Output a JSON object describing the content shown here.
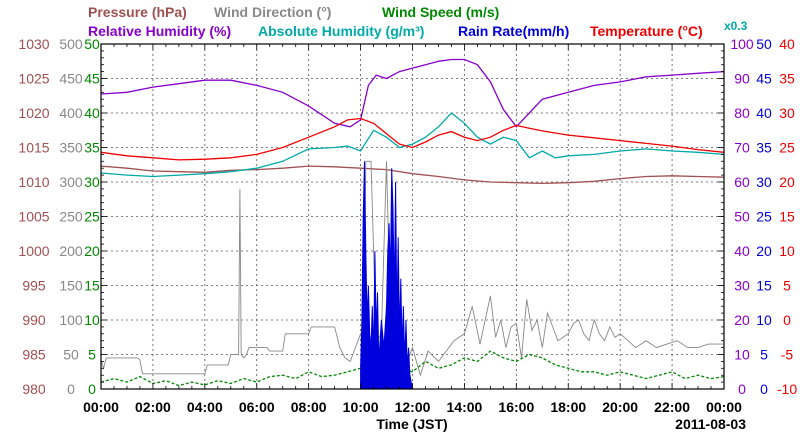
{
  "chart_data": {
    "type": "line",
    "date": "2011-08-03",
    "xlabel": "Time (JST)",
    "x_ticks": [
      "00:00",
      "02:00",
      "04:00",
      "06:00",
      "08:00",
      "10:00",
      "12:00",
      "14:00",
      "16:00",
      "18:00",
      "20:00",
      "22:00",
      "00:00"
    ],
    "x_range_hours": [
      0,
      24
    ],
    "grid": true,
    "colors": {
      "pressure": "#a05050",
      "wind_direction": "#888888",
      "wind_speed": "#008800",
      "relative_humidity": "#8800cc",
      "absolute_humidity": "#00aaaa",
      "rain_rate": "#0000dd",
      "temperature": "#ee0000"
    },
    "legend": {
      "row1": [
        {
          "key": "pressure",
          "label": "Pressure (hPa)"
        },
        {
          "key": "wind_direction",
          "label": "Wind Direction (°)"
        },
        {
          "key": "wind_speed",
          "label": "Wind Speed (m/s)"
        }
      ],
      "row2": [
        {
          "key": "relative_humidity",
          "label": "Relative Humidity (%)"
        },
        {
          "key": "absolute_humidity",
          "label": "Absolute Humidity (g/m³)"
        },
        {
          "key": "rain_rate",
          "label": "Rain Rate(mm/h)"
        },
        {
          "key": "temperature",
          "label": "Temperature (°C)"
        }
      ],
      "rain_scale_note": "x0.3"
    },
    "axes": {
      "pressure": {
        "range": [
          980,
          1030
        ],
        "ticks": [
          "1030",
          "1025",
          "1020",
          "1015",
          "1010",
          "1005",
          "1000",
          "995",
          "990",
          "985",
          "980"
        ]
      },
      "wind_direction": {
        "range": [
          0,
          500
        ],
        "ticks": [
          "500",
          "450",
          "400",
          "350",
          "300",
          "250",
          "200",
          "150",
          "100",
          "50",
          "0"
        ]
      },
      "wind_speed": {
        "range": [
          0,
          50
        ],
        "ticks": [
          "50",
          "45",
          "40",
          "35",
          "30",
          "25",
          "20",
          "15",
          "10",
          "5",
          "0"
        ]
      },
      "relative_humidity": {
        "range": [
          0,
          100
        ],
        "ticks": [
          "100",
          "90",
          "80",
          "70",
          "60",
          "50",
          "40",
          "30",
          "20",
          "10",
          "0"
        ]
      },
      "rain_rate": {
        "range": [
          0,
          50
        ],
        "ticks": [
          "50",
          "45",
          "40",
          "35",
          "30",
          "25",
          "20",
          "15",
          "10",
          "5",
          "0"
        ]
      },
      "temperature": {
        "range": [
          -10,
          40
        ],
        "ticks": [
          "40",
          "35",
          "30",
          "25",
          "20",
          "15",
          "10",
          "5",
          "0",
          "-5",
          "-10"
        ]
      }
    },
    "series": [
      {
        "name": "Pressure (hPa)",
        "axis": "pressure",
        "x": [
          0,
          1,
          2,
          3,
          4,
          5,
          6,
          7,
          8,
          9,
          10,
          11,
          12,
          13,
          14,
          15,
          16,
          17,
          18,
          19,
          20,
          21,
          22,
          23,
          24
        ],
        "y": [
          1012.3,
          1012.0,
          1011.6,
          1011.5,
          1011.4,
          1011.7,
          1011.8,
          1012.0,
          1012.3,
          1012.2,
          1012.0,
          1011.8,
          1011.2,
          1010.8,
          1010.3,
          1010.0,
          1009.9,
          1009.8,
          1009.9,
          1010.1,
          1010.5,
          1010.8,
          1010.9,
          1010.8,
          1010.7
        ]
      },
      {
        "name": "Relative Humidity (%)",
        "axis": "relative_humidity",
        "x": [
          0,
          1,
          2,
          3,
          4,
          5,
          6,
          7,
          8,
          9,
          9.6,
          10,
          10.3,
          10.6,
          11,
          11.5,
          12,
          12.5,
          13,
          13.5,
          14,
          14.5,
          15,
          15.5,
          16,
          16.5,
          17,
          18,
          19,
          20,
          21,
          22,
          23,
          24
        ],
        "y": [
          85.5,
          86,
          87.5,
          88.5,
          89.5,
          89.5,
          88,
          86,
          82,
          77,
          76,
          78,
          88,
          91,
          90,
          92,
          93,
          94,
          95,
          95.5,
          95.5,
          94,
          89,
          81,
          76,
          80,
          84,
          86,
          88,
          89,
          90.5,
          91,
          91.5,
          92
        ]
      },
      {
        "name": "Absolute Humidity (g/m³)",
        "axis": "wind_speed",
        "x": [
          0,
          1,
          2,
          3,
          4,
          5,
          6,
          7,
          8,
          9,
          9.5,
          10,
          10.5,
          11,
          11.5,
          12,
          12.5,
          13,
          13.5,
          14,
          14.5,
          15,
          15.5,
          16,
          16.5,
          17,
          17.5,
          18,
          19,
          20,
          21,
          22,
          23,
          24
        ],
        "y": [
          31.3,
          31.0,
          30.8,
          31.0,
          31.2,
          31.5,
          32.0,
          33.0,
          34.8,
          35.0,
          35.2,
          34.5,
          37.5,
          36.5,
          35.0,
          35.5,
          36.5,
          38.0,
          40.0,
          38.5,
          36.5,
          35.5,
          36.5,
          36.0,
          33.5,
          34.5,
          33.5,
          33.8,
          34.0,
          34.5,
          34.8,
          34.5,
          34.3,
          34.0
        ]
      },
      {
        "name": "Temperature (°C)",
        "axis": "temperature",
        "x": [
          0,
          1,
          2,
          3,
          4,
          5,
          6,
          7,
          8,
          9,
          9.5,
          10,
          10.5,
          11,
          11.5,
          12,
          12.5,
          13,
          13.5,
          14,
          14.5,
          15,
          15.5,
          16,
          16.5,
          17,
          18,
          19,
          20,
          21,
          22,
          23,
          24
        ],
        "y": [
          24.3,
          23.8,
          23.5,
          23.2,
          23.3,
          23.5,
          24.0,
          25.0,
          26.5,
          28.0,
          29.0,
          29.2,
          28.5,
          27.0,
          25.5,
          25.0,
          25.8,
          26.8,
          27.3,
          26.5,
          26.0,
          26.5,
          27.5,
          28.2,
          27.8,
          27.4,
          26.8,
          26.4,
          26.0,
          25.6,
          25.2,
          24.7,
          24.3
        ]
      },
      {
        "name": "Wind Direction (°)",
        "axis": "wind_direction",
        "x": [
          0,
          0.1,
          0.2,
          0.8,
          1.4,
          1.5,
          1.6,
          4.0,
          4.1,
          4.9,
          5.0,
          5.3,
          5.35,
          5.4,
          5.5,
          5.6,
          5.7,
          6.4,
          6.5,
          7.0,
          7.1,
          8.0,
          8.1,
          9.0,
          9.2,
          9.4,
          9.6,
          9.8,
          10.0,
          10.1,
          10.2,
          10.4,
          10.6,
          10.8,
          11.0,
          11.2,
          11.4,
          11.6,
          11.8,
          12.0,
          12.3,
          12.6,
          13.0,
          13.3,
          13.6,
          14.0,
          14.3,
          14.6,
          15.0,
          15.2,
          15.4,
          15.6,
          15.8,
          16.0,
          16.2,
          16.4,
          16.6,
          16.8,
          17.0,
          17.2,
          17.4,
          17.6,
          17.8,
          18.0,
          18.2,
          18.4,
          18.6,
          18.8,
          19.0,
          19.2,
          19.4,
          19.6,
          19.8,
          20.0,
          20.3,
          20.6,
          21.0,
          21.4,
          21.8,
          22.2,
          22.6,
          23.0,
          23.4,
          23.8,
          24.0
        ],
        "y": [
          42,
          30,
          45,
          45,
          45,
          42,
          22,
          22,
          35,
          35,
          50,
          50,
          290,
          50,
          45,
          50,
          60,
          60,
          55,
          55,
          80,
          80,
          90,
          90,
          60,
          45,
          40,
          60,
          80,
          60,
          330,
          330,
          70,
          80,
          330,
          30,
          70,
          60,
          40,
          60,
          20,
          55,
          40,
          55,
          70,
          80,
          120,
          65,
          135,
          75,
          100,
          60,
          90,
          95,
          45,
          130,
          85,
          100,
          60,
          110,
          90,
          70,
          75,
          80,
          95,
          100,
          80,
          70,
          100,
          80,
          70,
          90,
          75,
          80,
          70,
          60,
          70,
          60,
          65,
          70,
          60,
          60,
          65,
          65,
          65
        ]
      },
      {
        "name": "Wind Speed (m/s)",
        "axis": "wind_speed",
        "x": [
          0,
          0.5,
          1,
          1.5,
          2,
          2.5,
          3,
          3.5,
          4,
          4.5,
          5,
          5.5,
          6,
          6.5,
          7,
          7.5,
          8,
          8.5,
          9,
          9.5,
          10,
          10.5,
          11,
          11.5,
          12,
          12.5,
          13,
          13.5,
          14,
          14.5,
          15,
          15.5,
          16,
          16.5,
          17,
          17.5,
          18,
          18.5,
          19,
          19.5,
          20,
          20.5,
          21,
          21.5,
          22,
          22.5,
          23,
          23.5,
          24
        ],
        "y": [
          1.0,
          1.5,
          1.0,
          1.8,
          0.8,
          1.2,
          0.5,
          1.0,
          0.6,
          1.2,
          0.8,
          1.5,
          1.0,
          1.8,
          2.0,
          1.5,
          2.5,
          1.8,
          2.0,
          2.5,
          3.0,
          4.0,
          3.5,
          3.0,
          2.5,
          4.0,
          3.0,
          3.5,
          4.5,
          4.0,
          5.5,
          4.5,
          4.0,
          5.0,
          4.5,
          3.5,
          3.0,
          2.5,
          2.5,
          2.0,
          2.5,
          2.0,
          1.5,
          2.0,
          2.5,
          1.5,
          2.0,
          1.5,
          1.8
        ]
      },
      {
        "name": "Rain Rate(mm/h)",
        "axis": "rain_rate",
        "x": [
          10.0,
          10.05,
          10.1,
          10.15,
          10.2,
          10.25,
          10.3,
          10.35,
          10.4,
          10.45,
          10.5,
          10.55,
          10.6,
          10.65,
          10.7,
          10.8,
          10.9,
          11.0,
          11.05,
          11.1,
          11.15,
          11.2,
          11.25,
          11.3,
          11.35,
          11.4,
          11.45,
          11.5,
          11.55,
          11.6,
          11.65,
          11.7,
          11.75,
          11.8,
          11.85,
          11.9,
          12.0
        ],
        "y": [
          3,
          10,
          25,
          33,
          20,
          10,
          15,
          8,
          6,
          12,
          5,
          20,
          8,
          14,
          4,
          10,
          6,
          12,
          20,
          24,
          16,
          32,
          26,
          14,
          30,
          10,
          22,
          8,
          16,
          6,
          12,
          4,
          10,
          3,
          6,
          2,
          0
        ]
      }
    ]
  }
}
